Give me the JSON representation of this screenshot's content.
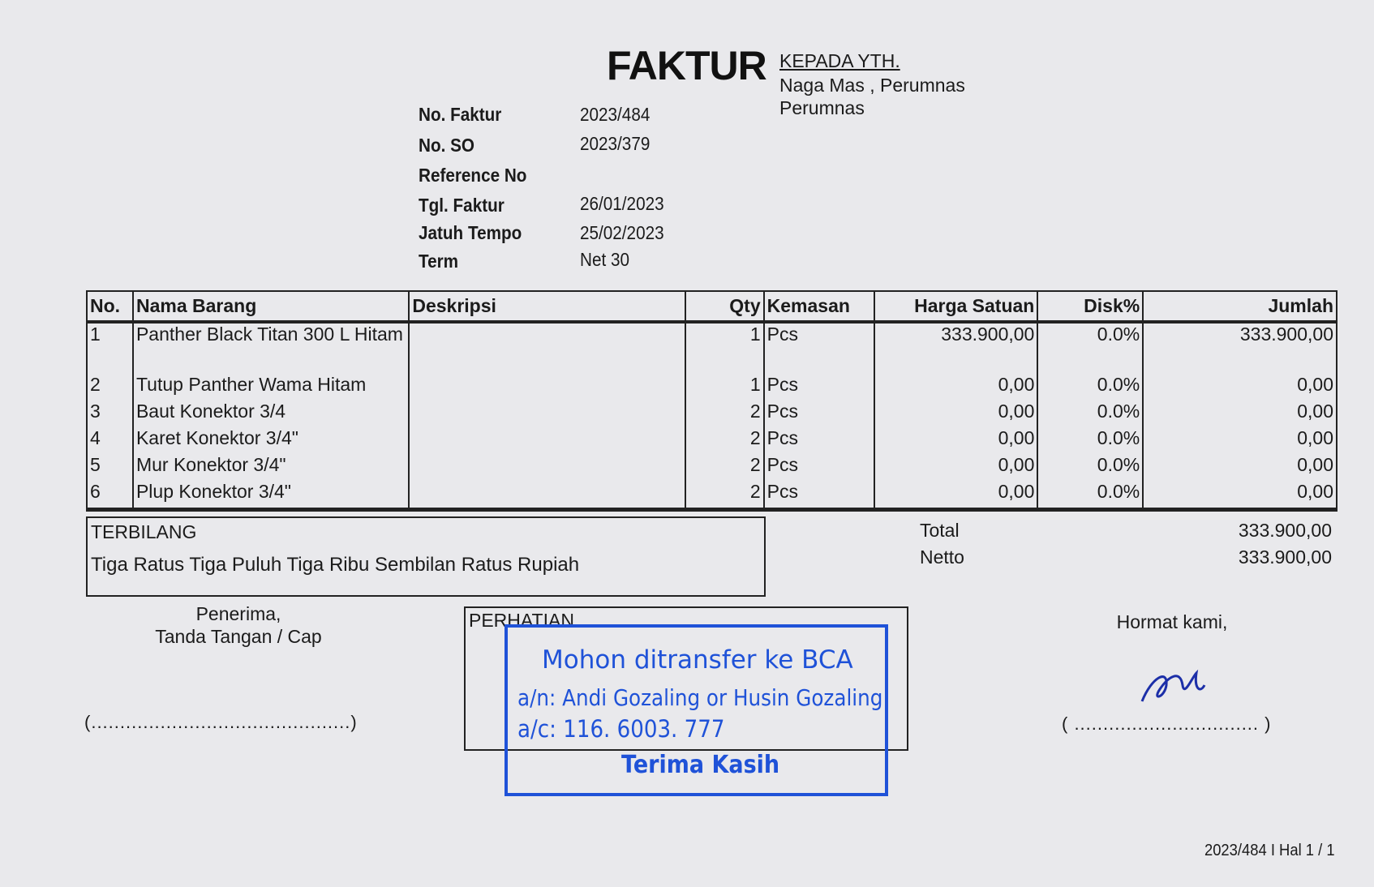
{
  "header": {
    "title": "FAKTUR",
    "recipient_label": "KEPADA YTH.",
    "recipient_name": "Naga Mas , Perumnas",
    "recipient_address": "Perumnas"
  },
  "meta": [
    {
      "label": "No. Faktur",
      "value": "2023/484"
    },
    {
      "label": "No. SO",
      "value": "2023/379"
    },
    {
      "label": "Reference No",
      "value": ""
    },
    {
      "label": "Tgl. Faktur",
      "value": "26/01/2023"
    },
    {
      "label": "Jatuh Tempo",
      "value": "25/02/2023"
    },
    {
      "label": "Term",
      "value": "Net 30"
    }
  ],
  "table": {
    "columns": [
      "No.",
      "Nama Barang",
      "Deskripsi",
      "Qty",
      "Kemasan",
      "Harga Satuan",
      "Disk%",
      "Jumlah"
    ],
    "rows": [
      [
        "1",
        "Panther Black Titan 300 L Hitam",
        "",
        "1",
        "Pcs",
        "333.900,00",
        "0.0%",
        "333.900,00"
      ],
      [
        "2",
        "Tutup Panther Wama Hitam",
        "",
        "1",
        "Pcs",
        "0,00",
        "0.0%",
        "0,00"
      ],
      [
        "3",
        "Baut Konektor 3/4",
        "",
        "2",
        "Pcs",
        "0,00",
        "0.0%",
        "0,00"
      ],
      [
        "4",
        "Karet Konektor 3/4\"",
        "",
        "2",
        "Pcs",
        "0,00",
        "0.0%",
        "0,00"
      ],
      [
        "5",
        "Mur Konektor 3/4\"",
        "",
        "2",
        "Pcs",
        "0,00",
        "0.0%",
        "0,00"
      ],
      [
        "6",
        "Plup Konektor 3/4\"",
        "",
        "2",
        "Pcs",
        "0,00",
        "0.0%",
        "0,00"
      ]
    ]
  },
  "terbilang": {
    "label": "TERBILANG",
    "text": "Tiga Ratus Tiga Puluh Tiga Ribu Sembilan Ratus Rupiah"
  },
  "totals": [
    {
      "label": "Total",
      "value": "333.900,00"
    },
    {
      "label": "Netto",
      "value": "333.900,00"
    }
  ],
  "receiver": {
    "line1": "Penerima,",
    "line2": "Tanda Tangan / Cap",
    "sign_line": "(.............................................)"
  },
  "notice": {
    "label": "PERHATIAN",
    "stamp_color": "#1f52d8",
    "stamp_lines": [
      "Mohon ditransfer ke BCA",
      "a/n: Andi Gozaling or Husin Gozaling",
      "a/c: 116. 6003. 777",
      "Terima Kasih"
    ]
  },
  "sender": {
    "label": "Hormat kami,",
    "sign_line": "( ................................ )"
  },
  "footer": {
    "page": "2023/484 I Hal 1 / 1"
  }
}
